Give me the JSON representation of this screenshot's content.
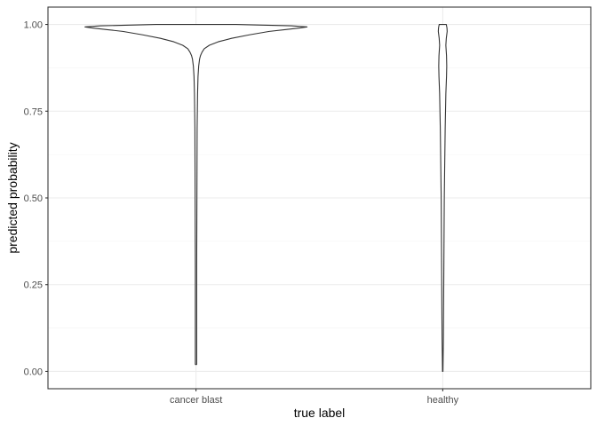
{
  "chart_data": {
    "type": "violin",
    "title": "",
    "xlabel": "true label",
    "ylabel": "predicted probability",
    "categories": [
      "cancer blast",
      "healthy"
    ],
    "ylim": [
      0,
      1
    ],
    "yticks": [
      0,
      0.25,
      0.5,
      0.75,
      1
    ],
    "ytick_labels": [
      "0.00",
      "0.25",
      "0.50",
      "0.75",
      "1.00"
    ],
    "grid": true,
    "legend": "none",
    "violins": [
      {
        "category": "cancer blast",
        "y_min": 0.02,
        "y_max": 1.0,
        "profile": [
          [
            0.02,
            0.003
          ],
          [
            0.1,
            0.003
          ],
          [
            0.3,
            0.003
          ],
          [
            0.5,
            0.004
          ],
          [
            0.7,
            0.005
          ],
          [
            0.8,
            0.007
          ],
          [
            0.85,
            0.009
          ],
          [
            0.88,
            0.012
          ],
          [
            0.9,
            0.016
          ],
          [
            0.91,
            0.02
          ],
          [
            0.92,
            0.027
          ],
          [
            0.93,
            0.037
          ],
          [
            0.94,
            0.06
          ],
          [
            0.95,
            0.1
          ],
          [
            0.96,
            0.16
          ],
          [
            0.97,
            0.24
          ],
          [
            0.98,
            0.33
          ],
          [
            0.985,
            0.4
          ],
          [
            0.99,
            0.47
          ],
          [
            0.993,
            0.5
          ],
          [
            0.996,
            0.43
          ],
          [
            0.998,
            0.3
          ],
          [
            1.0,
            0.18
          ]
        ]
      },
      {
        "category": "healthy",
        "y_min": 0.0,
        "y_max": 1.0,
        "profile": [
          [
            0.0,
            0.001
          ],
          [
            0.1,
            0.003
          ],
          [
            0.2,
            0.004
          ],
          [
            0.3,
            0.005
          ],
          [
            0.4,
            0.006
          ],
          [
            0.5,
            0.007
          ],
          [
            0.6,
            0.009
          ],
          [
            0.7,
            0.011
          ],
          [
            0.8,
            0.014
          ],
          [
            0.85,
            0.017
          ],
          [
            0.88,
            0.018
          ],
          [
            0.91,
            0.017
          ],
          [
            0.94,
            0.014
          ],
          [
            0.96,
            0.016
          ],
          [
            0.98,
            0.02
          ],
          [
            0.99,
            0.019
          ],
          [
            1.0,
            0.016
          ]
        ]
      }
    ]
  }
}
